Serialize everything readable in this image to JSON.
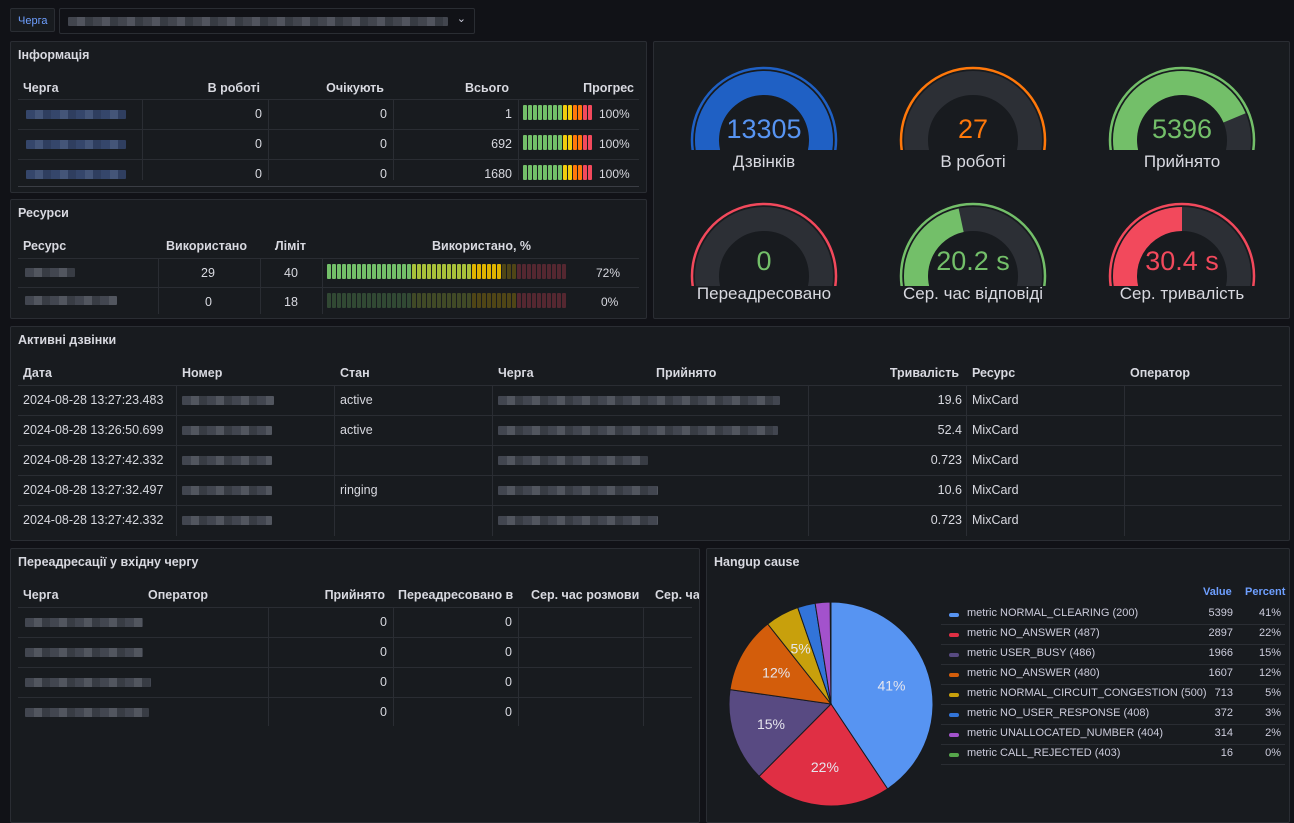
{
  "top_bar": {
    "variable_label": "Черга"
  },
  "info": {
    "title": "Інформація",
    "headers": [
      "Черга",
      "В роботі",
      "Очікують",
      "Всього",
      "Прогрес"
    ],
    "rows": [
      {
        "in_work": "0",
        "waiting": "0",
        "total": "1",
        "progress": "100%",
        "progress_value": 100
      },
      {
        "in_work": "0",
        "waiting": "0",
        "total": "692",
        "progress": "100%",
        "progress_value": 100
      },
      {
        "in_work": "0",
        "waiting": "0",
        "total": "1680",
        "progress": "100%",
        "progress_value": 100
      }
    ]
  },
  "resources": {
    "title": "Ресурси",
    "headers": [
      "Ресурс",
      "Використано",
      "Ліміт",
      "Використано, %"
    ],
    "rows": [
      {
        "used": "29",
        "limit": "40",
        "percent": "72%",
        "percent_value": 72
      },
      {
        "used": "0",
        "limit": "18",
        "percent": "0%",
        "percent_value": 0
      }
    ]
  },
  "gauges": [
    {
      "value": "13305",
      "label": "Дзвінків",
      "fill": 1.0,
      "color": "#1f60c4",
      "value_color": "#5794f2"
    },
    {
      "value": "27",
      "label": "В роботі",
      "fill": 0.02,
      "color": "#ff780a",
      "value_color": "#ff780a"
    },
    {
      "value": "5396",
      "label": "Прийнято",
      "fill": 0.78,
      "color": "#73bf69",
      "value_color": "#73bf69"
    },
    {
      "value": "0",
      "label": "Переадресовано",
      "fill": 0.0,
      "color": "#f2495c",
      "value_color": "#73bf69"
    },
    {
      "value": "20.2 s",
      "label": "Сер. час відповіді",
      "fill": 0.45,
      "color": "#73bf69",
      "value_color": "#73bf69"
    },
    {
      "value": "30.4 s",
      "label": "Сер. тривалість",
      "fill": 0.5,
      "color": "#f2495c",
      "value_color": "#f2495c"
    }
  ],
  "active_calls": {
    "title": "Активні дзвінки",
    "headers": [
      "Дата",
      "Номер",
      "Стан",
      "Черга",
      "Прийнято",
      "Тривалість",
      "Ресурс",
      "Оператор"
    ],
    "rows": [
      {
        "date": "2024-08-28 13:27:23.483",
        "state": "active",
        "duration": "19.6",
        "resource": "MixCard"
      },
      {
        "date": "2024-08-28 13:26:50.699",
        "state": "active",
        "duration": "52.4",
        "resource": "MixCard"
      },
      {
        "date": "2024-08-28 13:27:42.332",
        "state": "",
        "duration": "0.723",
        "resource": "MixCard"
      },
      {
        "date": "2024-08-28 13:27:32.497",
        "state": "ringing",
        "duration": "10.6",
        "resource": "MixCard"
      },
      {
        "date": "2024-08-28 13:27:42.332",
        "state": "",
        "duration": "0.723",
        "resource": "MixCard"
      }
    ]
  },
  "transfers": {
    "title": "Переадресації у вхідну чергу",
    "headers": [
      "Черга",
      "Оператор",
      "Прийнято",
      "Переадресовано в",
      "Сер. час розмови",
      "Сер. ча"
    ],
    "rows": [
      {
        "accepted": "0",
        "transferred": "0"
      },
      {
        "accepted": "0",
        "transferred": "0"
      },
      {
        "accepted": "0",
        "transferred": "0"
      },
      {
        "accepted": "0",
        "transferred": "0"
      }
    ]
  },
  "hangup": {
    "title": "Hangup cause",
    "legend_headers": {
      "value": "Value",
      "percent": "Percent"
    },
    "items": [
      {
        "name": "metric NORMAL_CLEARING (200)",
        "value": 5399,
        "value_text": "5399",
        "percent": "41%",
        "color": "#5794f2"
      },
      {
        "name": "metric NO_ANSWER (487)",
        "value": 2897,
        "value_text": "2897",
        "percent": "22%",
        "color": "#e02f44"
      },
      {
        "name": "metric USER_BUSY (486)",
        "value": 1966,
        "value_text": "1966",
        "percent": "15%",
        "color": "#584a82"
      },
      {
        "name": "metric NO_ANSWER (480)",
        "value": 1607,
        "value_text": "1607",
        "percent": "12%",
        "color": "#d35d0b"
      },
      {
        "name": "metric NORMAL_CIRCUIT_CONGESTION (500)",
        "value": 713,
        "value_text": "713",
        "percent": "5%",
        "color": "#c8a00c"
      },
      {
        "name": "metric NO_USER_RESPONSE (408)",
        "value": 372,
        "value_text": "372",
        "percent": "3%",
        "color": "#3274d9"
      },
      {
        "name": "metric UNALLOCATED_NUMBER (404)",
        "value": 314,
        "value_text": "314",
        "percent": "2%",
        "color": "#a352cc"
      },
      {
        "name": "metric CALL_REJECTED (403)",
        "value": 16,
        "value_text": "16",
        "percent": "0%",
        "color": "#56a64b"
      }
    ]
  },
  "chart_data": {
    "type": "pie",
    "title": "Hangup cause",
    "labels": [
      "metric NORMAL_CLEARING (200)",
      "metric NO_ANSWER (487)",
      "metric USER_BUSY (486)",
      "metric NO_ANSWER (480)",
      "metric NORMAL_CIRCUIT_CONGESTION (500)",
      "metric NO_USER_RESPONSE (408)",
      "metric UNALLOCATED_NUMBER (404)",
      "metric CALL_REJECTED (403)"
    ],
    "values": [
      5399,
      2897,
      1966,
      1607,
      713,
      372,
      314,
      16
    ],
    "slice_labels": [
      "41%",
      "22%",
      "15%",
      "12%",
      "5%",
      "",
      "",
      ""
    ],
    "legend": "right"
  }
}
